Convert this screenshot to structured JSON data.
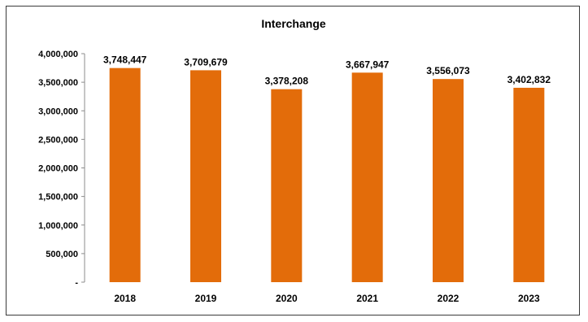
{
  "chart_data": {
    "type": "bar",
    "title": "Interchange",
    "categories": [
      "2018",
      "2019",
      "2020",
      "2021",
      "2022",
      "2023"
    ],
    "values": [
      3748447,
      3709679,
      3378208,
      3667947,
      3556073,
      3402832
    ],
    "data_labels": [
      "3,748,447",
      "3,709,679",
      "3,378,208",
      "3,667,947",
      "3,556,073",
      "3,402,832"
    ],
    "y_ticks": [
      "-",
      "500,000",
      "1,000,000",
      "1,500,000",
      "2,000,000",
      "2,500,000",
      "3,000,000",
      "3,500,000",
      "4,000,000"
    ],
    "ylim": [
      0,
      4000000
    ],
    "xlabel": "",
    "ylabel": "",
    "grid": false,
    "legend": "none",
    "bar_color": "#E36C0A"
  }
}
